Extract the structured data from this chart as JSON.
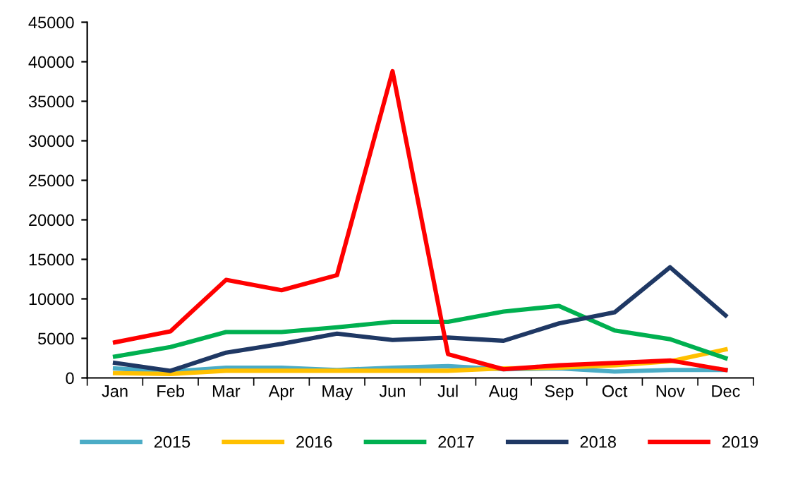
{
  "chart_data": {
    "type": "line",
    "categories": [
      "Jan",
      "Feb",
      "Mar",
      "Apr",
      "May",
      "Jun",
      "Jul",
      "Aug",
      "Sep",
      "Oct",
      "Nov",
      "Dec"
    ],
    "ylim": [
      0,
      45000
    ],
    "yticks": [
      0,
      5000,
      10000,
      15000,
      20000,
      25000,
      30000,
      35000,
      40000,
      45000
    ],
    "grid": false,
    "legend": "bottom",
    "marker": "none",
    "line_style": "solid",
    "series": [
      {
        "name": "2015",
        "color": "#4bacc6",
        "values": [
          1200,
          800,
          1300,
          1300,
          1000,
          1300,
          1500,
          1100,
          1200,
          800,
          1000,
          1000
        ]
      },
      {
        "name": "2016",
        "color": "#ffc000",
        "values": [
          600,
          500,
          900,
          900,
          900,
          900,
          900,
          1200,
          1300,
          1600,
          2100,
          3600
        ]
      },
      {
        "name": "2017",
        "color": "#00b050",
        "values": [
          2700,
          3900,
          5800,
          5800,
          6400,
          7100,
          7100,
          8400,
          9100,
          6000,
          4900,
          2500
        ]
      },
      {
        "name": "2018",
        "color": "#1f3864",
        "values": [
          1900,
          900,
          3200,
          4300,
          5600,
          4800,
          5100,
          4700,
          6900,
          8300,
          14000,
          7900
        ]
      },
      {
        "name": "2019",
        "color": "#ff0000",
        "values": [
          4500,
          5900,
          12400,
          11100,
          13000,
          38800,
          3000,
          1100,
          1600,
          1900,
          2200,
          1000
        ]
      }
    ]
  }
}
